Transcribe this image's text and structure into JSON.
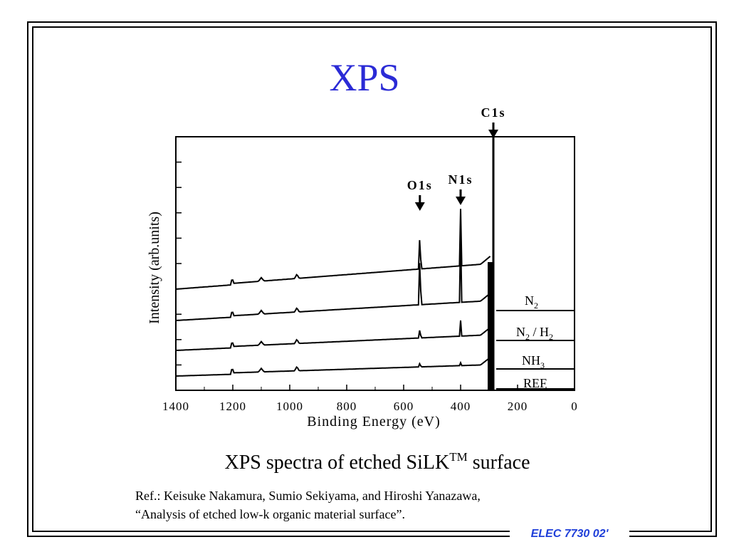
{
  "slide": {
    "title": "XPS",
    "caption_main": "XPS spectra of etched SiLK",
    "caption_sup": "TM",
    "caption_tail": " surface",
    "ref_line1": "Ref.: Keisuke Nakamura, Sumio Sekiyama, and Hiroshi Yanazawa,",
    "ref_line2": "“Analysis of etched low-k organic material surface”.",
    "footer": "ELEC 7730 02'"
  },
  "chart_data": {
    "type": "line",
    "xlabel": "Binding Energy (eV)",
    "ylabel": "Intensity (arb.units)",
    "xlim": [
      1400,
      0
    ],
    "x_ticks": [
      1400,
      1200,
      1000,
      800,
      600,
      400,
      200,
      0
    ],
    "x_tick_labels": [
      "1400",
      "1200",
      "1000",
      "800",
      "600",
      "400",
      "200",
      "0"
    ],
    "grid": false,
    "series": [
      {
        "name": "N2",
        "label_main": "N",
        "label_sub": "2",
        "label_tail": ""
      },
      {
        "name": "N2 / H2",
        "label_main": "N",
        "label_sub": "2",
        "label_tail": " / H",
        "label_sub2": "2"
      },
      {
        "name": "NH3",
        "label_main": "NH",
        "label_sub": "3",
        "label_tail": ""
      },
      {
        "name": "REF",
        "label_main": "REF",
        "label_sub": "",
        "label_tail": ""
      }
    ],
    "peaks": [
      {
        "label": "O1s",
        "x": 543
      },
      {
        "label": "N1s",
        "x": 400
      },
      {
        "label": "C1s",
        "x": 285
      }
    ]
  }
}
